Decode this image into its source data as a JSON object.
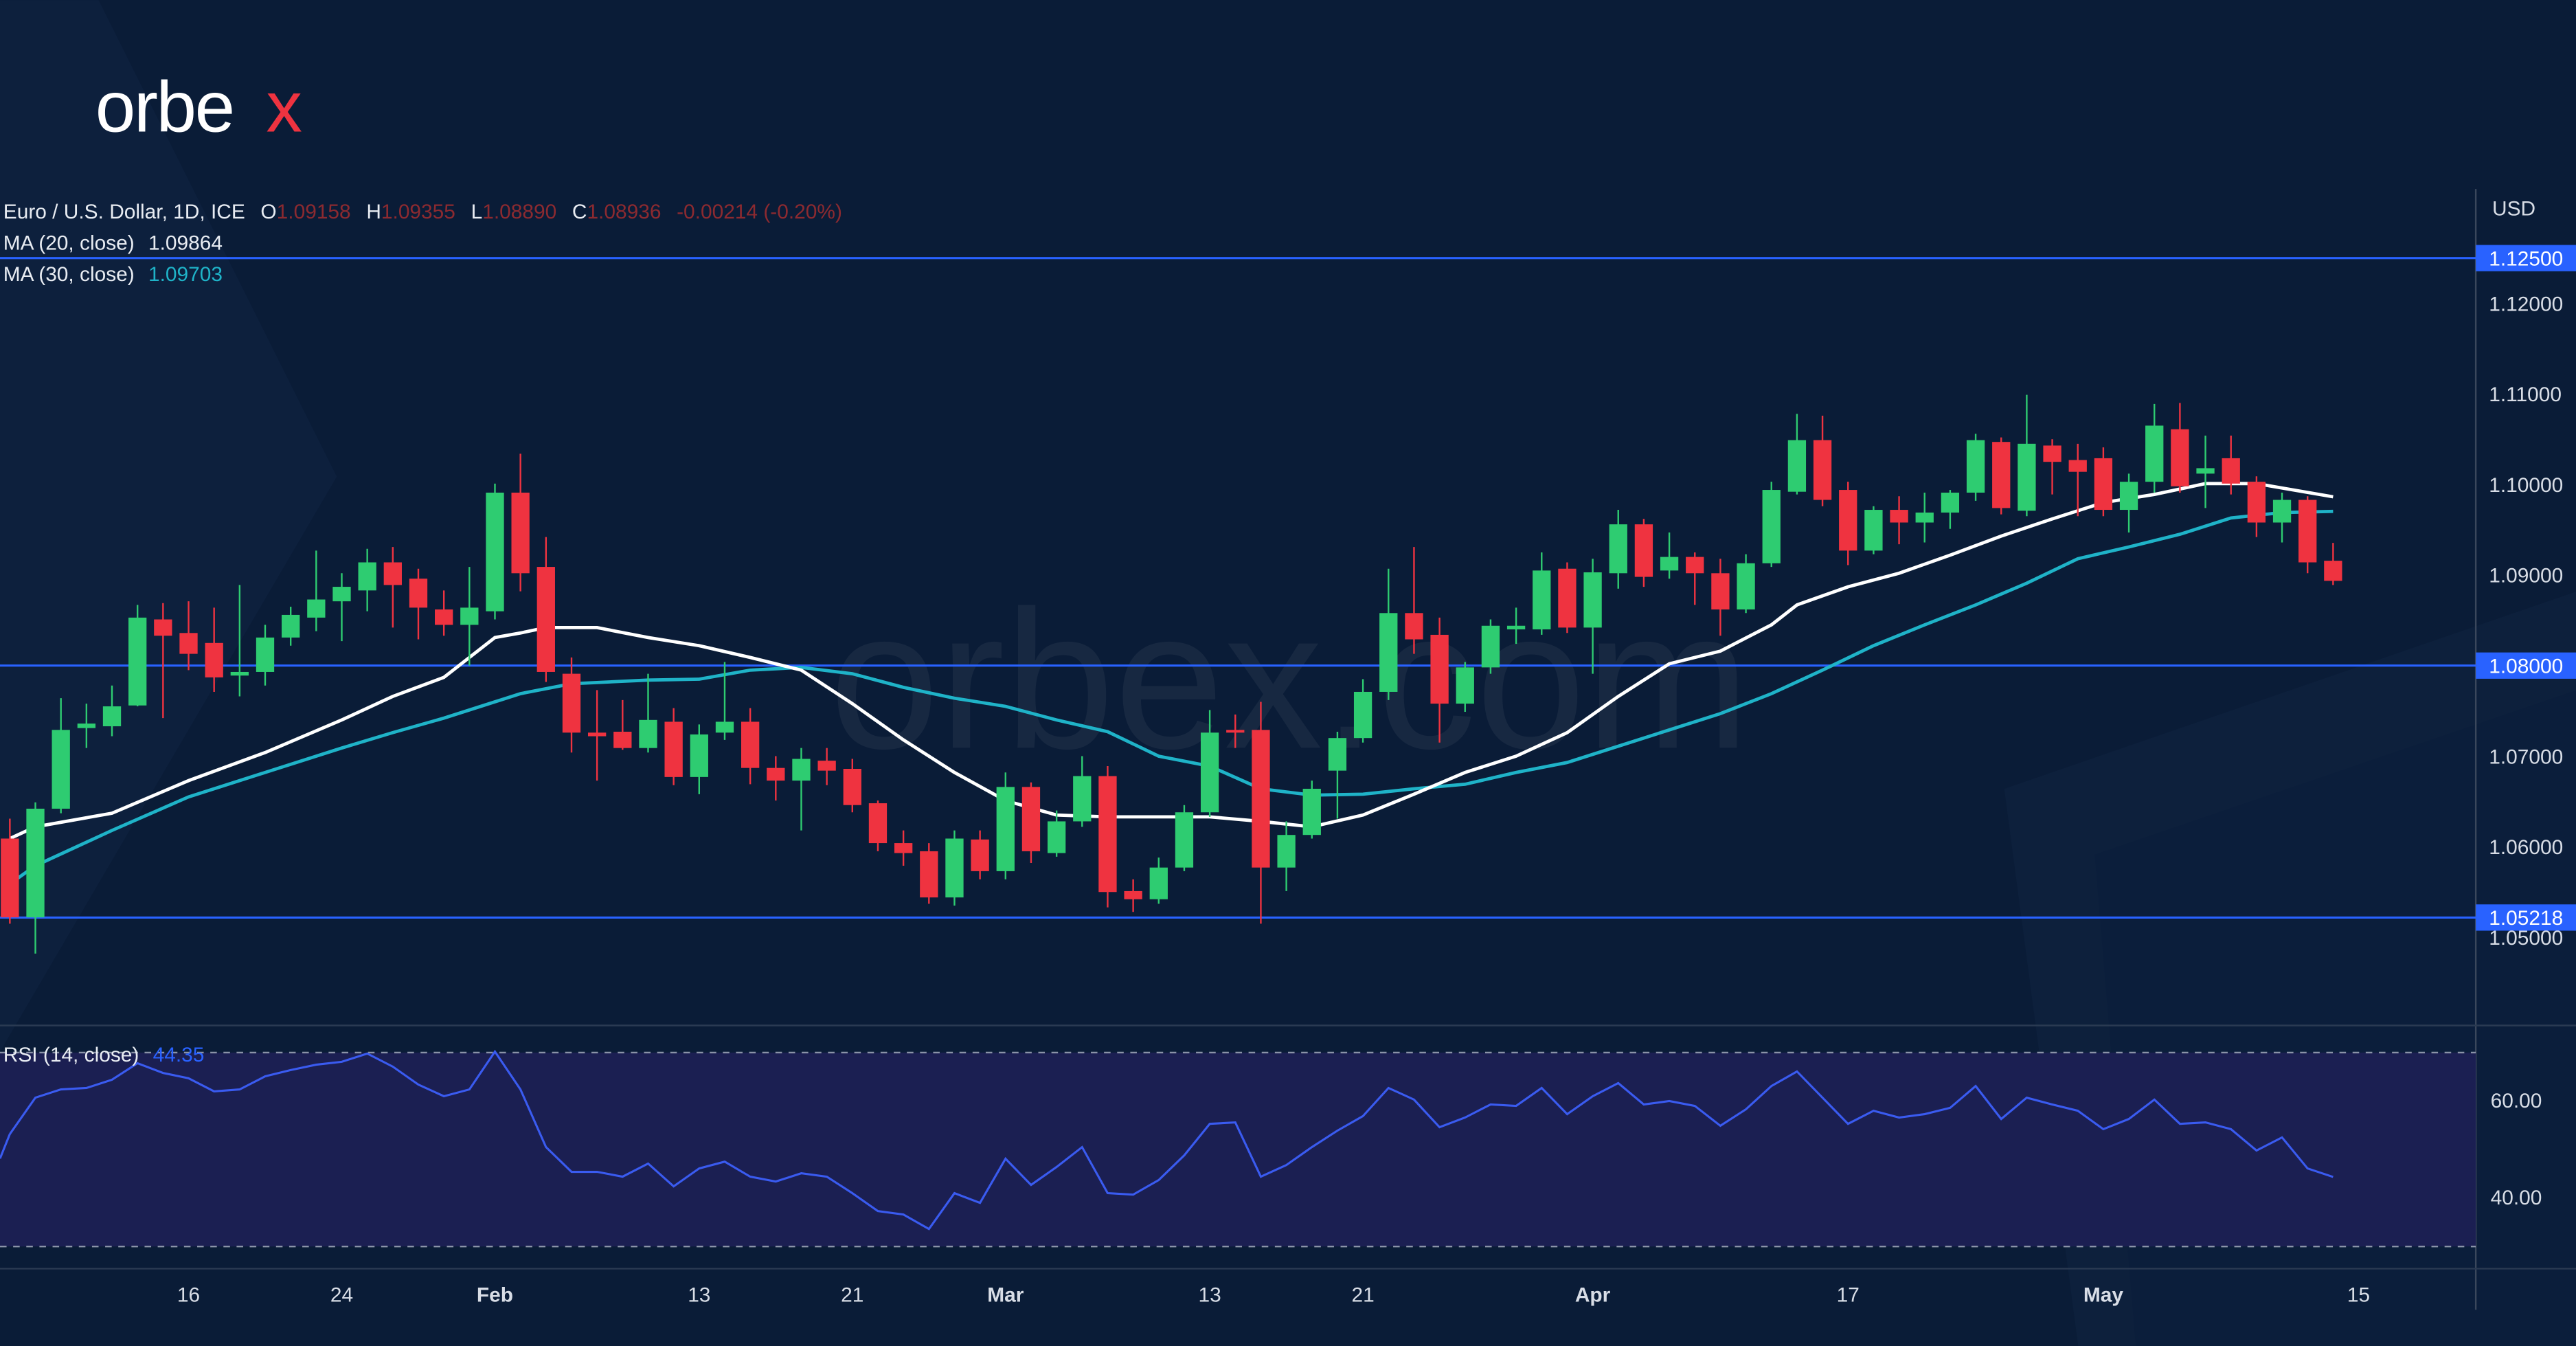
{
  "brand": {
    "logo_text": "orbex",
    "watermark": "orbex.com"
  },
  "colors": {
    "background": "#0a1c37",
    "up": "#2ecc71",
    "down": "#ef3340",
    "ma20": "#ffffff",
    "ma30": "#1fb3c8",
    "level_line": "#2962ff",
    "rsi_line": "#3a5bf0",
    "rsi_band": "#1b1f52"
  },
  "legend": {
    "symbol": "Euro / U.S. Dollar, 1D, ICE",
    "o_label": "O",
    "o": "1.09158",
    "h_label": "H",
    "h": "1.09355",
    "l_label": "L",
    "l": "1.08890",
    "c_label": "C",
    "c": "1.08936",
    "change": "-0.00214 (-0.20%)",
    "ma20_label": "MA (20, close)",
    "ma20_value": "1.09864",
    "ma30_label": "MA (30, close)",
    "ma30_value": "1.09703",
    "rsi_label": "RSI (14, close)",
    "rsi_value": "44.35"
  },
  "chart_data": [
    {
      "type": "candlestick",
      "currency_label": "USD",
      "ylim": [
        1.042,
        1.132
      ],
      "y_ticks": [
        "1.12000",
        "1.11000",
        "1.10000",
        "1.09000",
        "1.07000",
        "1.06000",
        "1.05000"
      ],
      "y_tick_values": [
        1.12,
        1.11,
        1.1,
        1.09,
        1.07,
        1.06,
        1.05
      ],
      "levels": [
        {
          "value": 1.125,
          "label": "1.12500"
        },
        {
          "value": 1.08,
          "label": "1.08000"
        },
        {
          "value": 1.05218,
          "label": "1.05218"
        }
      ],
      "x_ticks": [
        {
          "index": 7,
          "label": "16",
          "bold": false
        },
        {
          "index": 13,
          "label": "24",
          "bold": false
        },
        {
          "index": 19,
          "label": "Feb",
          "bold": true
        },
        {
          "index": 27,
          "label": "13",
          "bold": false
        },
        {
          "index": 33,
          "label": "21",
          "bold": false
        },
        {
          "index": 39,
          "label": "Mar",
          "bold": true
        },
        {
          "index": 47,
          "label": "13",
          "bold": false
        },
        {
          "index": 53,
          "label": "21",
          "bold": false
        },
        {
          "index": 62,
          "label": "Apr",
          "bold": true
        },
        {
          "index": 72,
          "label": "17",
          "bold": false
        },
        {
          "index": 82,
          "label": "May",
          "bold": true
        },
        {
          "index": 92,
          "label": "15",
          "bold": false
        }
      ],
      "ohlc": [
        [
          1.0609,
          1.0631,
          1.0515,
          1.0522
        ],
        [
          1.0522,
          1.0649,
          1.0482,
          1.0642
        ],
        [
          1.0642,
          1.0764,
          1.0637,
          1.0729
        ],
        [
          1.0731,
          1.0758,
          1.0709,
          1.0736
        ],
        [
          1.0733,
          1.0778,
          1.0722,
          1.0755
        ],
        [
          1.0756,
          1.0867,
          1.0755,
          1.0853
        ],
        [
          1.0851,
          1.0869,
          1.0742,
          1.0833
        ],
        [
          1.0836,
          1.0871,
          1.0795,
          1.0813
        ],
        [
          1.0825,
          1.0864,
          1.0771,
          1.0787
        ],
        [
          1.0789,
          1.0889,
          1.0766,
          1.0793
        ],
        [
          1.0793,
          1.0845,
          1.0778,
          1.0831
        ],
        [
          1.0831,
          1.0865,
          1.0822,
          1.0856
        ],
        [
          1.0853,
          1.0927,
          1.0838,
          1.0873
        ],
        [
          1.0871,
          1.0902,
          1.0827,
          1.0887
        ],
        [
          1.0883,
          1.0929,
          1.086,
          1.0914
        ],
        [
          1.0914,
          1.0931,
          1.0842,
          1.0889
        ],
        [
          1.0896,
          1.0907,
          1.0829,
          1.0864
        ],
        [
          1.0862,
          1.0883,
          1.0833,
          1.0845
        ],
        [
          1.0845,
          1.0909,
          1.08,
          1.0864
        ],
        [
          1.086,
          1.1001,
          1.0851,
          1.0991
        ],
        [
          1.0991,
          1.1034,
          1.0882,
          1.0902
        ],
        [
          1.0909,
          1.0942,
          1.0782,
          1.0793
        ],
        [
          1.0791,
          1.0809,
          1.0704,
          1.0726
        ],
        [
          1.0726,
          1.0773,
          1.0673,
          1.0722
        ],
        [
          1.0727,
          1.0762,
          1.0707,
          1.0709
        ],
        [
          1.0709,
          1.0791,
          1.0704,
          1.074
        ],
        [
          1.0738,
          1.0753,
          1.0668,
          1.0677
        ],
        [
          1.0677,
          1.0735,
          1.0658,
          1.0724
        ],
        [
          1.0726,
          1.0804,
          1.0718,
          1.0738
        ],
        [
          1.0738,
          1.0753,
          1.0669,
          1.0687
        ],
        [
          1.0687,
          1.07,
          1.0651,
          1.0673
        ],
        [
          1.0673,
          1.0709,
          1.0618,
          1.0697
        ],
        [
          1.0695,
          1.0709,
          1.0668,
          1.0684
        ],
        [
          1.0686,
          1.0697,
          1.0638,
          1.0646
        ],
        [
          1.0648,
          1.0651,
          1.0595,
          1.0604
        ],
        [
          1.0604,
          1.0618,
          1.0579,
          1.0593
        ],
        [
          1.0595,
          1.0604,
          1.0537,
          1.0544
        ],
        [
          1.0544,
          1.0618,
          1.0535,
          1.0609
        ],
        [
          1.0608,
          1.0618,
          1.0564,
          1.0573
        ],
        [
          1.0573,
          1.0682,
          1.0564,
          1.0666
        ],
        [
          1.0666,
          1.0671,
          1.0582,
          1.0595
        ],
        [
          1.0593,
          1.064,
          1.0589,
          1.0628
        ],
        [
          1.0628,
          1.07,
          1.0622,
          1.0678
        ],
        [
          1.0678,
          1.0689,
          1.0533,
          1.055
        ],
        [
          1.0551,
          1.0564,
          1.0528,
          1.0542
        ],
        [
          1.0542,
          1.0588,
          1.0537,
          1.0577
        ],
        [
          1.0577,
          1.0646,
          1.0573,
          1.0638
        ],
        [
          1.0638,
          1.0751,
          1.0633,
          1.0726
        ],
        [
          1.0729,
          1.0746,
          1.0709,
          1.0726
        ],
        [
          1.0729,
          1.076,
          1.0515,
          1.0577
        ],
        [
          1.0577,
          1.0628,
          1.0551,
          1.0613
        ],
        [
          1.0613,
          1.0673,
          1.0609,
          1.0664
        ],
        [
          1.0684,
          1.0727,
          1.0631,
          1.072
        ],
        [
          1.072,
          1.0785,
          1.0715,
          1.0771
        ],
        [
          1.0771,
          1.0907,
          1.0762,
          1.0858
        ],
        [
          1.0858,
          1.0931,
          1.0813,
          1.0829
        ],
        [
          1.0834,
          1.0853,
          1.0715,
          1.0758
        ],
        [
          1.0758,
          1.0804,
          1.0749,
          1.0798
        ],
        [
          1.0798,
          1.0851,
          1.0791,
          1.0844
        ],
        [
          1.084,
          1.0864,
          1.0824,
          1.0844
        ],
        [
          1.084,
          1.0925,
          1.0834,
          1.0905
        ],
        [
          1.0907,
          1.0914,
          1.0836,
          1.0842
        ],
        [
          1.0842,
          1.0918,
          1.0791,
          1.0903
        ],
        [
          1.0902,
          1.0972,
          1.0885,
          1.0956
        ],
        [
          1.0956,
          1.0962,
          1.0887,
          1.0898
        ],
        [
          1.0905,
          1.0947,
          1.0896,
          1.092
        ],
        [
          1.092,
          1.0925,
          1.0867,
          1.0902
        ],
        [
          1.0902,
          1.0918,
          1.0833,
          1.0862
        ],
        [
          1.0862,
          1.0923,
          1.0858,
          1.0913
        ],
        [
          1.0913,
          1.1003,
          1.0909,
          1.0994
        ],
        [
          1.0992,
          1.1078,
          1.0989,
          1.1049
        ],
        [
          1.1049,
          1.1076,
          1.0976,
          1.0983
        ],
        [
          1.0994,
          1.1003,
          1.0911,
          1.0927
        ],
        [
          1.0927,
          1.0976,
          1.0923,
          1.0972
        ],
        [
          1.0972,
          1.0987,
          1.0934,
          1.0958
        ],
        [
          1.0958,
          1.0991,
          1.0936,
          1.0969
        ],
        [
          1.0969,
          1.0994,
          1.0951,
          1.0991
        ],
        [
          1.0991,
          1.1056,
          1.0982,
          1.1049
        ],
        [
          1.1047,
          1.1052,
          1.0967,
          1.0974
        ],
        [
          1.0971,
          1.1099,
          1.0965,
          1.1045
        ],
        [
          1.1043,
          1.105,
          1.0989,
          1.1025
        ],
        [
          1.1027,
          1.1045,
          1.0965,
          1.1014
        ],
        [
          1.1029,
          1.1041,
          1.0965,
          1.0972
        ],
        [
          1.0972,
          1.1012,
          1.0947,
          1.1003
        ],
        [
          1.1003,
          1.1089,
          1.0991,
          1.1065
        ],
        [
          1.1061,
          1.109,
          1.0991,
          1.0998
        ],
        [
          1.1012,
          1.1054,
          1.0974,
          1.1018
        ],
        [
          1.1029,
          1.1054,
          1.0989,
          1.1001
        ],
        [
          1.1003,
          1.1009,
          1.0942,
          1.0958
        ],
        [
          1.0958,
          1.0991,
          1.0936,
          1.0983
        ],
        [
          1.0983,
          1.0987,
          1.0902,
          1.0914
        ],
        [
          1.09158,
          1.09355,
          1.0889,
          1.08936
        ]
      ],
      "ma20": {
        "index": [
          0,
          1,
          4,
          7,
          10,
          13,
          15,
          17,
          19,
          20,
          21,
          23,
          25,
          27,
          29,
          31,
          33,
          35,
          37,
          39,
          41,
          43,
          45,
          47,
          49,
          51,
          53,
          55,
          57,
          59,
          61,
          63,
          65,
          67,
          69,
          70,
          72,
          74,
          76,
          78,
          80,
          82,
          84,
          86,
          88,
          91
        ],
        "value": [
          1.0609,
          1.0622,
          1.0637,
          1.0673,
          1.0704,
          1.074,
          1.0766,
          1.0787,
          1.0831,
          1.0836,
          1.0842,
          1.0842,
          1.0831,
          1.0822,
          1.0809,
          1.0795,
          1.0758,
          1.0718,
          1.0682,
          1.0651,
          1.0635,
          1.0633,
          1.0633,
          1.0633,
          1.0628,
          1.0622,
          1.0635,
          1.0658,
          1.0682,
          1.07,
          1.0726,
          1.0766,
          1.0802,
          1.0816,
          1.0845,
          1.0867,
          1.0887,
          1.0902,
          1.0922,
          1.0943,
          1.0962,
          1.098,
          1.0989,
          1.1001,
          1.1001,
          1.09864
        ]
      },
      "ma30": {
        "index": [
          0,
          1,
          4,
          7,
          10,
          13,
          15,
          17,
          19,
          20,
          22,
          25,
          27,
          29,
          31,
          33,
          35,
          37,
          39,
          41,
          43,
          45,
          47,
          49,
          51,
          53,
          55,
          57,
          59,
          61,
          63,
          65,
          67,
          69,
          71,
          73,
          75,
          77,
          79,
          81,
          83,
          85,
          87,
          89,
          91
        ],
        "value": [
          1.0559,
          1.0579,
          1.0618,
          1.0655,
          1.0682,
          1.0709,
          1.0726,
          1.0742,
          1.076,
          1.0769,
          1.078,
          1.0784,
          1.0785,
          1.0795,
          1.0798,
          1.0791,
          1.0776,
          1.0764,
          1.0755,
          1.074,
          1.0727,
          1.07,
          1.0689,
          1.0664,
          1.0657,
          1.0658,
          1.0664,
          1.0669,
          1.0682,
          1.0693,
          1.0711,
          1.0729,
          1.0747,
          1.0769,
          1.0795,
          1.0822,
          1.0845,
          1.0867,
          1.0891,
          1.0918,
          1.0931,
          1.0945,
          1.0963,
          1.0969,
          1.09703
        ]
      }
    },
    {
      "type": "line",
      "name": "RSI (14, close)",
      "ylim": [
        25,
        77
      ],
      "band": [
        30,
        70
      ],
      "y_ticks": [
        "60.00",
        "40.00"
      ],
      "y_tick_values": [
        60,
        40
      ],
      "values": [
        53.2,
        60.7,
        62.4,
        62.7,
        64.4,
        67.8,
        65.8,
        64.7,
        62.0,
        62.4,
        65.1,
        66.4,
        67.5,
        68.1,
        69.8,
        67.1,
        63.4,
        61.0,
        62.4,
        70.2,
        62.4,
        50.5,
        45.4,
        45.4,
        44.4,
        47.1,
        42.4,
        46.1,
        47.5,
        44.4,
        43.4,
        45.1,
        44.4,
        41.0,
        37.3,
        36.6,
        33.6,
        41.0,
        39.0,
        48.1,
        42.7,
        46.4,
        50.5,
        41.0,
        40.7,
        43.7,
        48.8,
        55.3,
        55.6,
        44.4,
        46.8,
        50.5,
        53.9,
        56.9,
        62.7,
        60.3,
        54.6,
        56.6,
        59.3,
        59.0,
        62.7,
        57.3,
        61.0,
        63.7,
        59.3,
        60.0,
        59.0,
        54.9,
        58.3,
        63.1,
        66.1,
        60.7,
        55.3,
        58.0,
        56.6,
        57.3,
        58.6,
        63.1,
        56.3,
        60.7,
        59.3,
        58.0,
        54.2,
        56.3,
        60.3,
        55.3,
        55.6,
        54.2,
        49.8,
        52.5,
        46.1,
        44.35
      ]
    }
  ]
}
